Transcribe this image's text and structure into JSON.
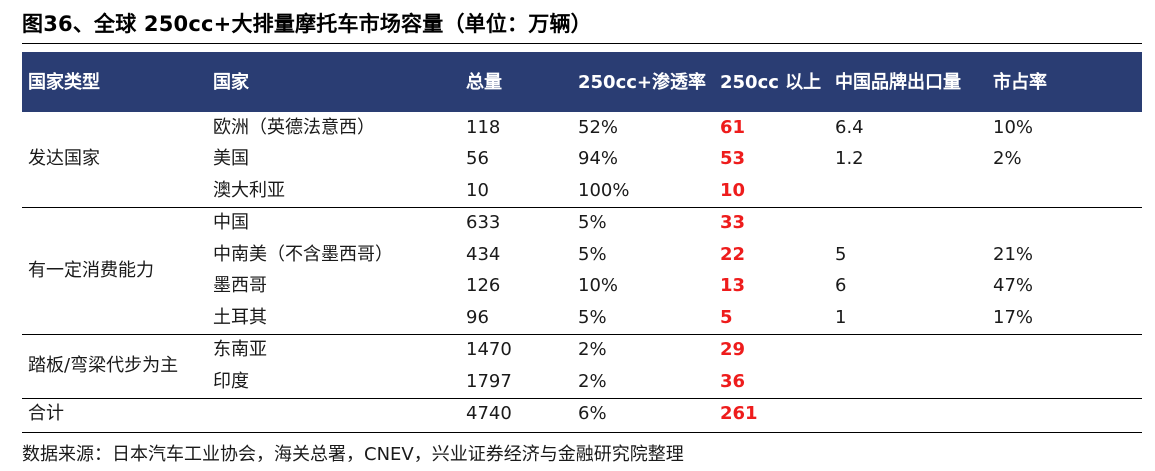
{
  "title": "图36、全球 250cc+大排量摩托车市场容量（单位：万辆）",
  "headers": [
    "国家类型",
    "国家",
    "总量",
    "250cc+渗透率",
    "250cc 以上",
    "中国品牌出口量",
    "市占率"
  ],
  "groups": [
    {
      "type": "发达国家",
      "rows": [
        {
          "country": "欧洲（英德法意西）",
          "total": "118",
          "penetration": "52%",
          "over250": "61",
          "china_export": "6.4",
          "share": "10%"
        },
        {
          "country": "美国",
          "total": "56",
          "penetration": "94%",
          "over250": "53",
          "china_export": "1.2",
          "share": "2%"
        },
        {
          "country": "澳大利亚",
          "total": "10",
          "penetration": "100%",
          "over250": "10",
          "china_export": "",
          "share": ""
        }
      ]
    },
    {
      "type": "有一定消费能力",
      "rows": [
        {
          "country": "中国",
          "total": "633",
          "penetration": "5%",
          "over250": "33",
          "china_export": "",
          "share": ""
        },
        {
          "country": "中南美（不含墨西哥）",
          "total": "434",
          "penetration": "5%",
          "over250": "22",
          "china_export": "5",
          "share": "21%"
        },
        {
          "country": "墨西哥",
          "total": "126",
          "penetration": "10%",
          "over250": "13",
          "china_export": "6",
          "share": "47%"
        },
        {
          "country": "土耳其",
          "total": "96",
          "penetration": "5%",
          "over250": "5",
          "china_export": "1",
          "share": "17%"
        }
      ]
    },
    {
      "type": "踏板/弯梁代步为主",
      "rows": [
        {
          "country": "东南亚",
          "total": "1470",
          "penetration": "2%",
          "over250": "29",
          "china_export": "",
          "share": ""
        },
        {
          "country": "印度",
          "total": "1797",
          "penetration": "2%",
          "over250": "36",
          "china_export": "",
          "share": ""
        }
      ]
    }
  ],
  "total_row": {
    "label": "合计",
    "country": "",
    "total": "4740",
    "penetration": "6%",
    "over250": "261",
    "china_export": "",
    "share": ""
  },
  "source": "数据来源：日本汽车工业协会，海关总署，CNEV，兴业证券经济与金融研究院整理",
  "colors": {
    "header_bg": "#2a3d73",
    "highlight": "#ee1c1c"
  }
}
